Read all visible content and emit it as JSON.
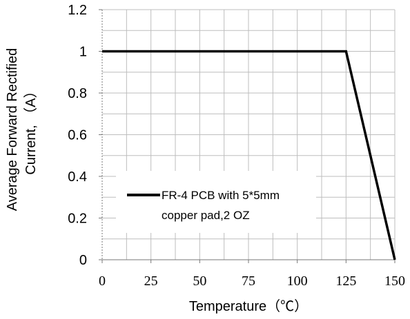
{
  "chart_data": {
    "type": "line",
    "xlabel": "Temperature（℃）",
    "ylabel_line1": "Average  Forward  Rectified",
    "ylabel_line2": "Current, （A）",
    "xlim": [
      0,
      150
    ],
    "ylim": [
      0,
      1.2
    ],
    "x_ticks": [
      0,
      25,
      50,
      75,
      100,
      125,
      150
    ],
    "y_ticks": [
      0,
      0.2,
      0.4,
      0.6,
      0.8,
      1,
      1.2
    ],
    "y_tick_labels": [
      "0",
      "0.2",
      "0.4",
      "0.6",
      "0.8",
      "1",
      "1.2"
    ],
    "x_minor_step": 12.5,
    "y_minor_step": 0.1,
    "grid": true,
    "legend_position": "lower-left",
    "series": [
      {
        "name_line1": "FR-4 PCB with 5*5mm",
        "name_line2": "copper pad,2 OZ",
        "color": "#000000",
        "x": [
          0,
          125,
          150
        ],
        "y": [
          1,
          1,
          0
        ]
      }
    ]
  }
}
